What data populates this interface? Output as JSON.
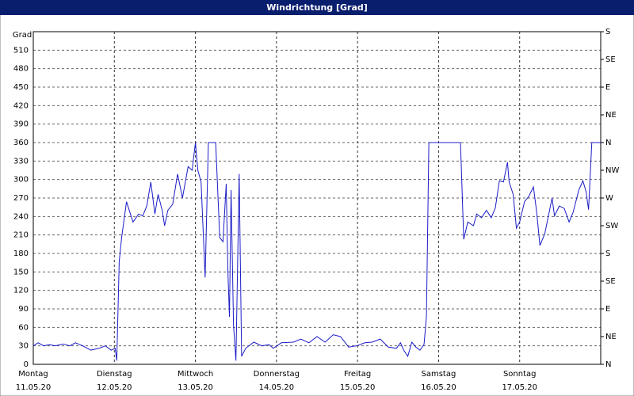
{
  "chart_data": {
    "type": "line",
    "title": "Windrichtung [Grad]",
    "y_label": "Grad",
    "xlim": [
      0,
      7
    ],
    "xticks": [
      {
        "value": 0,
        "label": "Montag"
      },
      {
        "value": 1,
        "label": "Dienstag"
      },
      {
        "value": 2,
        "label": "Mittwoch"
      },
      {
        "value": 3,
        "label": "Donnerstag"
      },
      {
        "value": 4,
        "label": "Freitag"
      },
      {
        "value": 5,
        "label": "Samstag"
      },
      {
        "value": 6,
        "label": "Sonntag"
      }
    ],
    "xtick_dates": [
      "11.05.20",
      "12.05.20",
      "13.05.20",
      "14.05.20",
      "15.05.20",
      "16.05.20",
      "17.05.20"
    ],
    "ylim": [
      0,
      540
    ],
    "yticks": [
      0,
      30,
      60,
      90,
      120,
      150,
      180,
      210,
      240,
      270,
      300,
      330,
      360,
      390,
      420,
      450,
      480,
      510
    ],
    "y2lim": [
      0,
      540
    ],
    "y2ticks": [
      {
        "value": 0,
        "label": "N"
      },
      {
        "value": 45,
        "label": "NE"
      },
      {
        "value": 90,
        "label": "E"
      },
      {
        "value": 135,
        "label": "SE"
      },
      {
        "value": 180,
        "label": "S"
      },
      {
        "value": 225,
        "label": "SW"
      },
      {
        "value": 270,
        "label": "W"
      },
      {
        "value": 315,
        "label": "NW"
      },
      {
        "value": 360,
        "label": "N"
      },
      {
        "value": 405,
        "label": "NE"
      },
      {
        "value": 450,
        "label": "E"
      },
      {
        "value": 495,
        "label": "SE"
      },
      {
        "value": 540,
        "label": "S"
      }
    ],
    "grid": true,
    "series": [
      {
        "color": "#1c1cc8",
        "x": [
          0,
          0.06,
          0.13,
          0.2,
          0.27,
          0.37,
          0.45,
          0.52,
          0.61,
          0.71,
          0.81,
          0.89,
          0.96,
          1.01,
          1.03,
          1.06,
          1.09,
          1.15,
          1.23,
          1.3,
          1.35,
          1.4,
          1.45,
          1.5,
          1.54,
          1.59,
          1.62,
          1.66,
          1.72,
          1.78,
          1.84,
          1.91,
          1.96,
          2.0,
          2.03,
          2.07,
          2.12,
          2.16,
          2.25,
          2.3,
          2.34,
          2.38,
          2.4,
          2.42,
          2.44,
          2.47,
          2.5,
          2.54,
          2.57,
          2.62,
          2.72,
          2.82,
          2.91,
          2.96,
          3.06,
          3.21,
          3.3,
          3.4,
          3.5,
          3.6,
          3.7,
          3.79,
          3.89,
          3.99,
          4.09,
          4.18,
          4.28,
          4.38,
          4.48,
          4.53,
          4.57,
          4.62,
          4.67,
          4.72,
          4.77,
          4.82,
          4.85,
          4.88,
          5.27,
          5.31,
          5.36,
          5.43,
          5.47,
          5.53,
          5.59,
          5.65,
          5.7,
          5.75,
          5.8,
          5.85,
          5.87,
          5.92,
          5.96,
          6.0,
          6.06,
          6.11,
          6.17,
          6.21,
          6.25,
          6.31,
          6.4,
          6.43,
          6.49,
          6.55,
          6.61,
          6.66,
          6.73,
          6.78,
          6.82,
          6.85,
          6.89,
          7.0
        ],
        "values": [
          30,
          35,
          30,
          32,
          30,
          33,
          30,
          35,
          30,
          23,
          26,
          30,
          23,
          26,
          6,
          167,
          206,
          264,
          231,
          244,
          241,
          257,
          296,
          244,
          276,
          250,
          225,
          250,
          260,
          309,
          270,
          321,
          315,
          360,
          315,
          296,
          141,
          360,
          360,
          206,
          199,
          293,
          154,
          77,
          283,
          64,
          6,
          309,
          13,
          26,
          36,
          30,
          32,
          26,
          35,
          36,
          41,
          35,
          45,
          36,
          48,
          45,
          28,
          30,
          35,
          36,
          41,
          28,
          26,
          35,
          23,
          13,
          36,
          28,
          23,
          32,
          77,
          360,
          360,
          203,
          231,
          225,
          244,
          238,
          250,
          238,
          254,
          298,
          296,
          328,
          296,
          276,
          221,
          231,
          264,
          272,
          288,
          247,
          193,
          212,
          270,
          241,
          257,
          253,
          231,
          247,
          283,
          298,
          280,
          251,
          360,
          360
        ]
      }
    ]
  }
}
